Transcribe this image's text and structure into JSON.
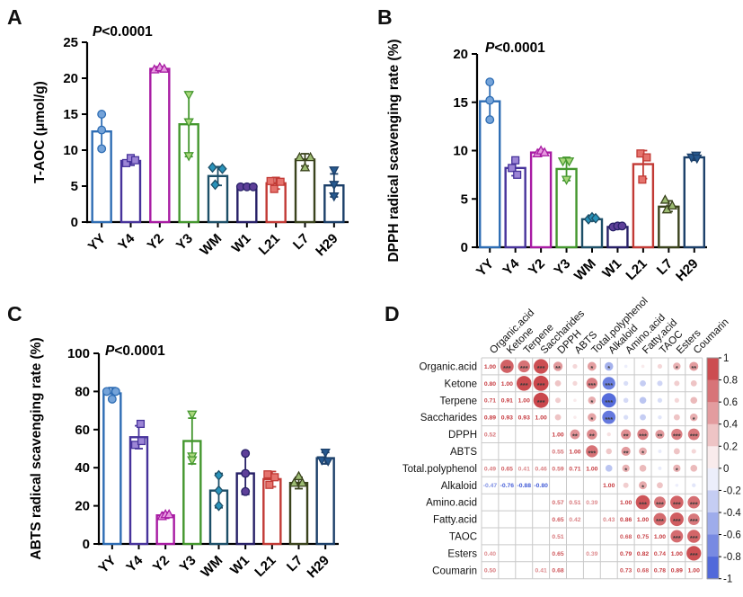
{
  "figure": {
    "panel_labels": {
      "a": "A",
      "b": "B",
      "c": "C",
      "d": "D"
    }
  },
  "group_styles": {
    "YY": {
      "color": "#2e6db4",
      "point": "#74a3d9",
      "marker": "circle"
    },
    "Y4": {
      "color": "#47339b",
      "point": "#9c85d6",
      "marker": "square"
    },
    "Y2": {
      "color": "#a81ba3",
      "point": "#e79ae0",
      "marker": "triangle-up"
    },
    "Y3": {
      "color": "#44972e",
      "point": "#a8d77b",
      "marker": "triangle-down"
    },
    "WM": {
      "color": "#1d4f68",
      "point": "#2a93ba",
      "marker": "diamond"
    },
    "W1": {
      "color": "#272067",
      "point": "#5e4099",
      "marker": "circle"
    },
    "L21": {
      "color": "#c23a35",
      "point": "#e5736d",
      "marker": "square"
    },
    "L7": {
      "color": "#3a431d",
      "point": "#9cbb72",
      "marker": "triangle-up"
    },
    "H29": {
      "color": "#1b3f69",
      "point": "#27598f",
      "marker": "triangle-down"
    }
  },
  "chart_data": [
    {
      "type": "bar",
      "panel": "A",
      "p_label": "P<0.0001",
      "ylabel": "T-AOC (μmol/g)",
      "ylim": [
        0,
        25
      ],
      "yticks": [
        0,
        5,
        10,
        15,
        20,
        25
      ],
      "categories": [
        "YY",
        "Y4",
        "Y2",
        "Y3",
        "WM",
        "W1",
        "L21",
        "L7",
        "H29"
      ],
      "means": [
        12.6,
        8.5,
        21.3,
        13.6,
        6.4,
        4.9,
        5.4,
        8.7,
        5.1
      ],
      "errors": [
        [
          10.1,
          15.0
        ],
        [
          7.9,
          9.1
        ],
        [
          21.0,
          21.6
        ],
        [
          9.1,
          18.0
        ],
        [
          5.1,
          7.7
        ],
        [
          4.7,
          5.1
        ],
        [
          4.6,
          6.2
        ],
        [
          7.8,
          9.5
        ],
        [
          3.5,
          6.7
        ]
      ],
      "points": [
        [
          [
            0,
            10.2
          ],
          [
            0,
            12.8
          ],
          [
            0,
            15.0
          ]
        ],
        [
          [
            -5,
            8.2
          ],
          [
            0,
            8.9
          ],
          [
            5,
            8.6
          ]
        ],
        [
          [
            -6,
            21.2
          ],
          [
            0,
            21.5
          ],
          [
            5,
            21.3
          ]
        ],
        [
          [
            0,
            9.2
          ],
          [
            0,
            13.9
          ],
          [
            0,
            17.7
          ]
        ],
        [
          [
            -6,
            7.6
          ],
          [
            5,
            7.4
          ],
          [
            -3,
            5.2
          ]
        ],
        [
          [
            -7,
            4.9
          ],
          [
            0,
            4.9
          ],
          [
            7,
            4.9
          ]
        ],
        [
          [
            -6,
            5.7
          ],
          [
            -2,
            4.6
          ],
          [
            5,
            5.6
          ]
        ],
        [
          [
            -6,
            9.0
          ],
          [
            6,
            9.0
          ],
          [
            0,
            7.6
          ]
        ],
        [
          [
            0,
            7.2
          ],
          [
            0,
            5.2
          ],
          [
            0,
            3.6
          ]
        ]
      ]
    },
    {
      "type": "bar",
      "panel": "B",
      "p_label": "P<0.0001",
      "ylabel": "DPPH radical scavenging rate (%)",
      "ylim": [
        0,
        20
      ],
      "yticks": [
        0,
        5,
        10,
        15,
        20
      ],
      "categories": [
        "YY",
        "Y4",
        "Y2",
        "Y3",
        "WM",
        "W1",
        "L21",
        "L7",
        "H29"
      ],
      "means": [
        15.1,
        8.2,
        9.8,
        8.1,
        2.9,
        2.1,
        8.6,
        4.2,
        9.3
      ],
      "errors": [
        [
          13.1,
          17.1
        ],
        [
          7.4,
          9.0
        ],
        [
          9.5,
          10.1
        ],
        [
          6.9,
          9.3
        ],
        [
          2.7,
          3.2
        ],
        [
          1.9,
          2.3
        ],
        [
          7.1,
          10.0
        ],
        [
          3.7,
          4.8
        ],
        [
          9.0,
          9.6
        ]
      ],
      "points": [
        [
          [
            0,
            13.2
          ],
          [
            0,
            15.2
          ],
          [
            0,
            17.1
          ]
        ],
        [
          [
            0,
            9.0
          ],
          [
            -4,
            8.2
          ],
          [
            2,
            7.5
          ]
        ],
        [
          [
            -4,
            9.7
          ],
          [
            0,
            10.0
          ],
          [
            4,
            9.8
          ]
        ],
        [
          [
            -4,
            8.9
          ],
          [
            3,
            8.9
          ],
          [
            0,
            7.0
          ]
        ],
        [
          [
            -4,
            2.9
          ],
          [
            0,
            3.1
          ],
          [
            4,
            3.0
          ]
        ],
        [
          [
            -5,
            2.1
          ],
          [
            0,
            2.2
          ],
          [
            5,
            2.2
          ]
        ],
        [
          [
            -3,
            9.7
          ],
          [
            4,
            9.3
          ],
          [
            -1,
            7.0
          ]
        ],
        [
          [
            -4,
            4.9
          ],
          [
            -2,
            3.9
          ],
          [
            4,
            4.3
          ]
        ],
        [
          [
            -3,
            9.3
          ],
          [
            2,
            9.5
          ],
          [
            3,
            9.2
          ]
        ]
      ]
    },
    {
      "type": "bar",
      "panel": "C",
      "p_label": "P<0.0001",
      "ylabel": "ABTS radical scavenging rate (%)",
      "ylim": [
        0,
        100
      ],
      "yticks": [
        0,
        20,
        40,
        60,
        80,
        100
      ],
      "categories": [
        "YY",
        "Y4",
        "Y2",
        "Y3",
        "WM",
        "W1",
        "L21",
        "L7",
        "H29"
      ],
      "means": [
        79,
        56,
        15,
        54,
        28,
        37,
        34,
        32,
        45
      ],
      "errors": [
        [
          76,
          82
        ],
        [
          50,
          62
        ],
        [
          13.5,
          16.5
        ],
        [
          42,
          66
        ],
        [
          19,
          37
        ],
        [
          26,
          47
        ],
        [
          30,
          38
        ],
        [
          29,
          35
        ],
        [
          42,
          48
        ]
      ],
      "points": [
        [
          [
            -6,
            80
          ],
          [
            4,
            80
          ],
          [
            0,
            76
          ]
        ],
        [
          [
            -4,
            52
          ],
          [
            3,
            54
          ],
          [
            2,
            63
          ]
        ],
        [
          [
            -4,
            14.5
          ],
          [
            0,
            15.5
          ],
          [
            4,
            15.5
          ]
        ],
        [
          [
            0,
            68
          ],
          [
            0,
            46
          ],
          [
            0,
            44
          ]
        ],
        [
          [
            0,
            36
          ],
          [
            0,
            28
          ],
          [
            0,
            20
          ]
        ],
        [
          [
            0,
            47.5
          ],
          [
            0,
            37
          ],
          [
            0,
            27.5
          ]
        ],
        [
          [
            -5,
            36.5
          ],
          [
            3,
            35
          ],
          [
            -3,
            31
          ]
        ],
        [
          [
            0,
            35.5
          ],
          [
            -5,
            32
          ],
          [
            4,
            32
          ]
        ],
        [
          [
            0,
            48
          ],
          [
            -4,
            44
          ],
          [
            3,
            43.5
          ]
        ]
      ]
    },
    {
      "type": "heatmap",
      "panel": "D",
      "variables": [
        "Organic.acid",
        "Ketone",
        "Terpene",
        "Saccharides",
        "DPPH",
        "ABTS",
        "Total.polyphenol",
        "Alkaloid",
        "Amino.acid",
        "Fatty.acid",
        "TAOC",
        "Esters",
        "Coumarin"
      ],
      "diagonal_value": "1.00",
      "lower_triangle": [
        [],
        [
          [
            0.8,
            1
          ]
        ],
        [
          [
            0.71,
            1
          ],
          [
            0.91,
            1
          ]
        ],
        [
          [
            0.89,
            1
          ],
          [
            0.93,
            1
          ],
          [
            0.93,
            1
          ]
        ],
        [
          [
            0.52,
            1
          ],
          [
            0.3,
            0
          ],
          [
            0.25,
            0
          ],
          [
            0.3,
            0
          ]
        ],
        [
          [
            0.2,
            0
          ],
          [
            0.2,
            0
          ],
          [
            0.1,
            0
          ],
          [
            0.1,
            0
          ],
          [
            0.55,
            1
          ]
        ],
        [
          [
            0.49,
            1
          ],
          [
            0.65,
            1
          ],
          [
            0.41,
            1
          ],
          [
            0.46,
            1
          ],
          [
            0.59,
            1
          ],
          [
            0.71,
            1
          ]
        ],
        [
          [
            -0.47,
            1
          ],
          [
            -0.76,
            1
          ],
          [
            -0.88,
            1
          ],
          [
            -0.8,
            1
          ],
          [
            0.15,
            0
          ],
          [
            0.28,
            0
          ],
          [
            -0.35,
            0
          ]
        ],
        [
          [
            -0.1,
            0
          ],
          [
            -0.2,
            0
          ],
          [
            -0.22,
            0
          ],
          [
            -0.2,
            0
          ],
          [
            0.57,
            1
          ],
          [
            0.51,
            1
          ],
          [
            0.39,
            1
          ],
          [
            0.25,
            0
          ]
        ],
        [
          [
            0.1,
            0
          ],
          [
            -0.3,
            0
          ],
          [
            -0.35,
            0
          ],
          [
            -0.3,
            0
          ],
          [
            0.65,
            1
          ],
          [
            0.42,
            1
          ],
          [
            0.35,
            0
          ],
          [
            0.43,
            1
          ],
          [
            0.86,
            1
          ]
        ],
        [
          [
            0.2,
            0
          ],
          [
            -0.25,
            0
          ],
          [
            -0.2,
            0
          ],
          [
            -0.15,
            0
          ],
          [
            0.51,
            1
          ],
          [
            -0.12,
            0
          ],
          [
            -0.12,
            0
          ],
          [
            0.3,
            0
          ],
          [
            0.68,
            1
          ],
          [
            0.75,
            1
          ]
        ],
        [
          [
            0.4,
            1
          ],
          [
            0.25,
            0
          ],
          [
            0.2,
            0
          ],
          [
            0.3,
            0
          ],
          [
            0.65,
            1
          ],
          [
            0.3,
            0
          ],
          [
            0.39,
            1
          ],
          [
            -0.1,
            0
          ],
          [
            0.79,
            1
          ],
          [
            0.82,
            1
          ],
          [
            0.74,
            1
          ]
        ],
        [
          [
            0.5,
            1
          ],
          [
            0.3,
            0
          ],
          [
            0.35,
            0
          ],
          [
            0.41,
            1
          ],
          [
            0.68,
            1
          ],
          [
            0.2,
            0
          ],
          [
            0.35,
            0
          ],
          [
            -0.15,
            0
          ],
          [
            0.73,
            1
          ],
          [
            0.68,
            1
          ],
          [
            0.78,
            1
          ],
          [
            0.89,
            1
          ]
        ]
      ],
      "colorbar_ticks": [
        1,
        0.8,
        0.6,
        0.4,
        0.2,
        0,
        -0.2,
        -0.4,
        -0.6,
        -0.8,
        -1
      ],
      "colors": {
        "positive": "#c6393e",
        "negative": "#3e58d6",
        "grid": "#c9c9c9",
        "stars": "#3a3a3a"
      }
    }
  ]
}
